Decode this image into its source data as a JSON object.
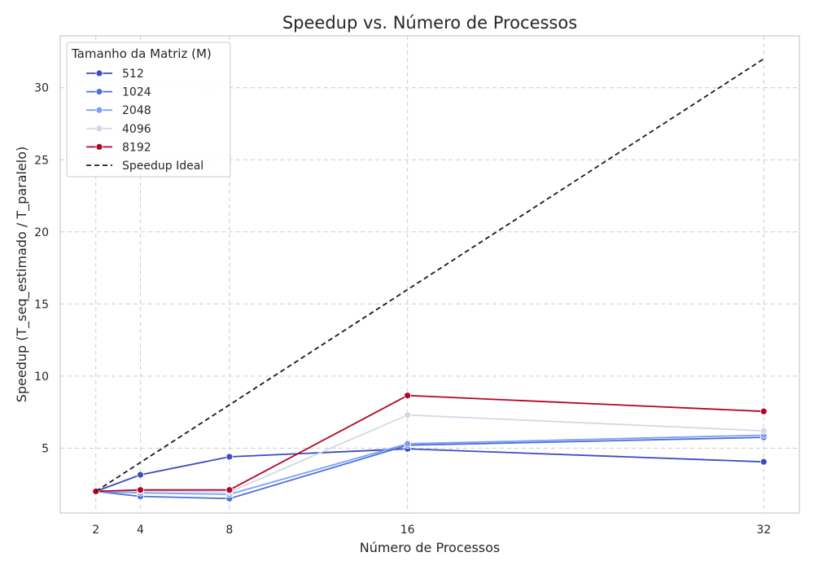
{
  "chart_data": {
    "type": "line",
    "title": "Speedup vs. Número de Processos",
    "xlabel": "Número de Processos",
    "ylabel": "Speedup (T_seq_estimado / T_paralelo)",
    "x": [
      2,
      4,
      8,
      16,
      32
    ],
    "x_ticks": [
      "2",
      "4",
      "8",
      "16",
      "32"
    ],
    "y_ticks": [
      "5",
      "10",
      "15",
      "20",
      "25",
      "30"
    ],
    "xlim": [
      0.4,
      33.6
    ],
    "ylim": [
      0.5,
      33.6
    ],
    "grid": true,
    "legend": {
      "title": "Tamanho da Matriz (M)",
      "placement": "top-left"
    },
    "series": [
      {
        "name": "512",
        "color": "#3b4cc0",
        "marker": "circle",
        "values": [
          2.0,
          3.15,
          4.4,
          4.95,
          4.05
        ]
      },
      {
        "name": "1024",
        "color": "#4f6fd8",
        "marker": "circle",
        "values": [
          2.0,
          1.65,
          1.5,
          5.2,
          5.75
        ]
      },
      {
        "name": "2048",
        "color": "#7b9ff9",
        "marker": "circle",
        "values": [
          2.0,
          1.9,
          1.8,
          5.3,
          5.9
        ]
      },
      {
        "name": "4096",
        "color": "#d3d8e6",
        "marker": "circle",
        "values": [
          2.0,
          2.05,
          1.95,
          7.3,
          6.2
        ]
      },
      {
        "name": "8192",
        "color": "#b40426",
        "marker": "circle",
        "values": [
          2.0,
          2.1,
          2.1,
          8.65,
          7.55
        ]
      },
      {
        "name": "Speedup Ideal",
        "color": "#1a1a1a",
        "marker": "none",
        "dashed": true,
        "values": [
          2,
          4,
          8,
          16,
          32
        ]
      }
    ]
  }
}
